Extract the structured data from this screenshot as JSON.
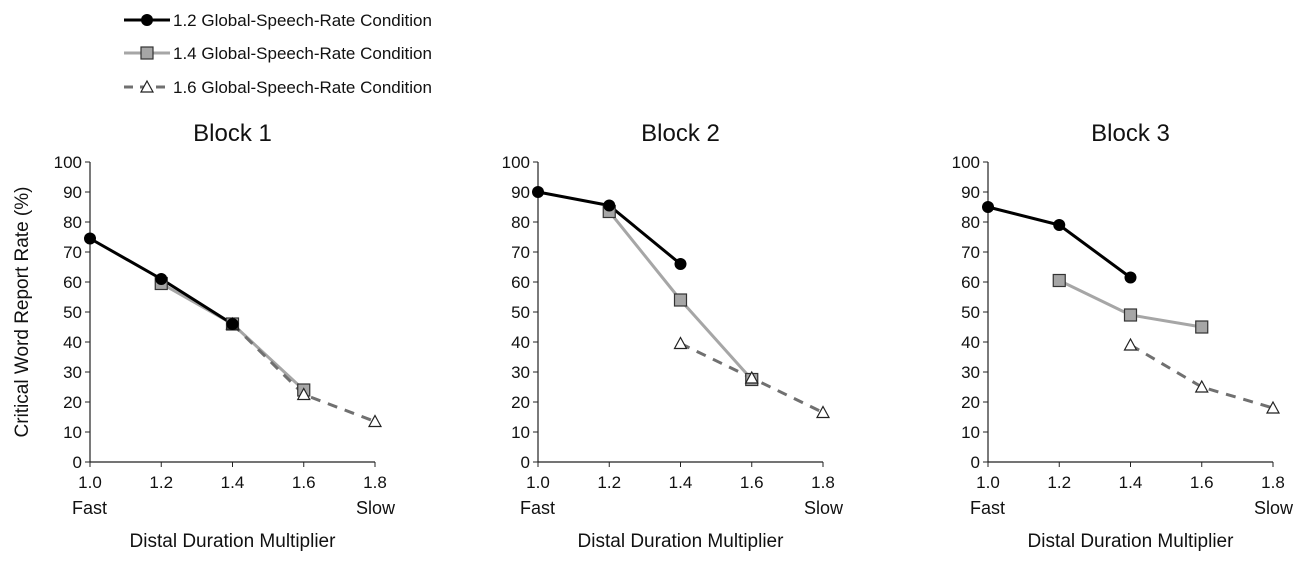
{
  "legend": [
    {
      "label": "1.2 Global-Speech-Rate Condition",
      "color": "#000000",
      "marker": "circle",
      "dash": "solid"
    },
    {
      "label": "1.4 Global-Speech-Rate Condition",
      "color": "#a6a6a6",
      "marker": "square",
      "dash": "solid"
    },
    {
      "label": "1.6 Global-Speech-Rate Condition",
      "color": "#707070",
      "marker": "triangle",
      "dash": "dashed"
    }
  ],
  "chart_data": [
    {
      "type": "line",
      "title": "Block 1",
      "xlabel": "Distal Duration Multiplier",
      "ylabel": "Critical Word Report Rate (%)",
      "x_ticks": [
        "1.0",
        "1.2",
        "1.4",
        "1.6",
        "1.8"
      ],
      "x_end_labels": {
        "left": "Fast",
        "right": "Slow"
      },
      "y_ticks": [
        "0",
        "10",
        "20",
        "30",
        "40",
        "50",
        "60",
        "70",
        "80",
        "90",
        "100"
      ],
      "xlim": [
        1.0,
        1.8
      ],
      "ylim": [
        0,
        100
      ],
      "series": [
        {
          "name": "1.2 Global-Speech-Rate Condition",
          "x": [
            1.0,
            1.2,
            1.4
          ],
          "y": [
            74.5,
            61,
            46
          ]
        },
        {
          "name": "1.4 Global-Speech-Rate Condition",
          "x": [
            1.2,
            1.4,
            1.6
          ],
          "y": [
            59.5,
            46,
            24
          ]
        },
        {
          "name": "1.6 Global-Speech-Rate Condition",
          "x": [
            1.4,
            1.6,
            1.8
          ],
          "y": [
            46,
            22.5,
            13.5
          ]
        }
      ]
    },
    {
      "type": "line",
      "title": "Block 2",
      "xlabel": "Distal Duration Multiplier",
      "ylabel": "",
      "x_ticks": [
        "1.0",
        "1.2",
        "1.4",
        "1.6",
        "1.8"
      ],
      "x_end_labels": {
        "left": "Fast",
        "right": "Slow"
      },
      "y_ticks": [
        "0",
        "10",
        "20",
        "30",
        "40",
        "50",
        "60",
        "70",
        "80",
        "90",
        "100"
      ],
      "xlim": [
        1.0,
        1.8
      ],
      "ylim": [
        0,
        100
      ],
      "series": [
        {
          "name": "1.2 Global-Speech-Rate Condition",
          "x": [
            1.0,
            1.2,
            1.4
          ],
          "y": [
            90,
            85.5,
            66
          ]
        },
        {
          "name": "1.4 Global-Speech-Rate Condition",
          "x": [
            1.2,
            1.4,
            1.6
          ],
          "y": [
            83.5,
            54,
            27.5
          ]
        },
        {
          "name": "1.6 Global-Speech-Rate Condition",
          "x": [
            1.4,
            1.6,
            1.8
          ],
          "y": [
            39.5,
            28,
            16.5
          ]
        }
      ]
    },
    {
      "type": "line",
      "title": "Block 3",
      "xlabel": "Distal Duration Multiplier",
      "ylabel": "",
      "x_ticks": [
        "1.0",
        "1.2",
        "1.4",
        "1.6",
        "1.8"
      ],
      "x_end_labels": {
        "left": "Fast",
        "right": "Slow"
      },
      "y_ticks": [
        "0",
        "10",
        "20",
        "30",
        "40",
        "50",
        "60",
        "70",
        "80",
        "90",
        "100"
      ],
      "xlim": [
        1.0,
        1.8
      ],
      "ylim": [
        0,
        100
      ],
      "series": [
        {
          "name": "1.2 Global-Speech-Rate Condition",
          "x": [
            1.0,
            1.2,
            1.4
          ],
          "y": [
            85,
            79,
            61.5
          ]
        },
        {
          "name": "1.4 Global-Speech-Rate Condition",
          "x": [
            1.2,
            1.4,
            1.6
          ],
          "y": [
            60.5,
            49,
            45
          ]
        },
        {
          "name": "1.6 Global-Speech-Rate Condition",
          "x": [
            1.4,
            1.6,
            1.8
          ],
          "y": [
            39,
            25,
            18
          ]
        }
      ]
    }
  ]
}
